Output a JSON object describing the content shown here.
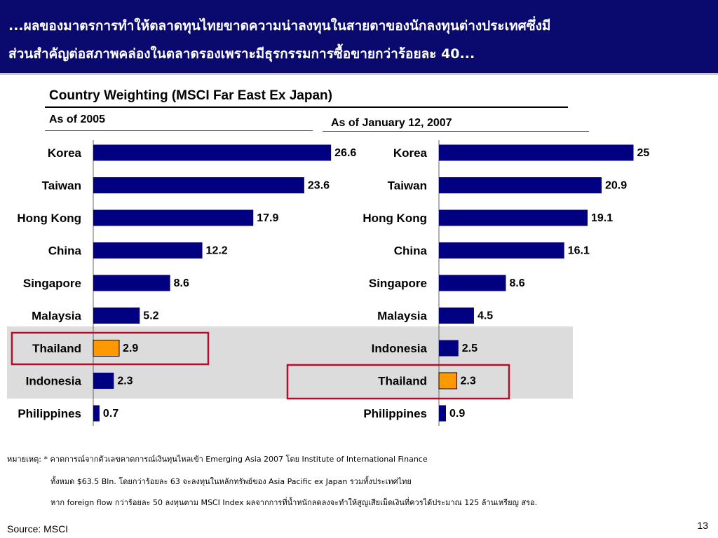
{
  "header": {
    "line1": "...ผลของมาตรการทำให้ตลาดทุนไทยขาดความน่าลงทุนในสายตาของนักลงทุนต่างประเทศซึ่งมี",
    "line2": "ส่วนสำคัญต่อสภาพคล่องในตลาดรองเพราะมีธุรกรรมการซื้อขายกว่าร้อยละ 40..."
  },
  "colors": {
    "bar": "#000080",
    "highlight_bar": "#ff9900",
    "highlight_box": "#b0102a",
    "band": "#dcdcdc"
  },
  "chart_data": [
    {
      "type": "bar",
      "orientation": "horizontal",
      "title": "Country Weighting (MSCI Far East Ex Japan)",
      "subtitle": "As of 2005",
      "categories": [
        "Korea",
        "Taiwan",
        "Hong Kong",
        "China",
        "Singapore",
        "Malaysia",
        "Thailand",
        "Indonesia",
        "Philippines"
      ],
      "values": [
        26.6,
        23.6,
        17.9,
        12.2,
        8.6,
        5.2,
        2.9,
        2.3,
        0.7
      ],
      "labels": [
        "26.6",
        "23.6",
        "17.9",
        "12.2",
        "8.6",
        "5.2",
        "2.9",
        "2.3",
        "0.7"
      ],
      "highlight": "Thailand",
      "xlim": [
        0,
        27
      ]
    },
    {
      "type": "bar",
      "orientation": "horizontal",
      "subtitle": "As of January 12, 2007",
      "categories": [
        "Korea",
        "Taiwan",
        "Hong Kong",
        "China",
        "Singapore",
        "Malaysia",
        "Indonesia",
        "Thailand",
        "Philippines"
      ],
      "values": [
        25,
        20.9,
        19.1,
        16.1,
        8.6,
        4.5,
        2.5,
        2.3,
        0.9
      ],
      "labels": [
        "25",
        "20.9",
        "19.1",
        "16.1",
        "8.6",
        "4.5",
        "2.5",
        "2.3",
        "0.9"
      ],
      "highlight": "Thailand",
      "xlim": [
        0,
        27
      ]
    }
  ],
  "notes": {
    "line1": "หมายเหตุ: * คาดการณ์จากตัวเลขคาดการณ์เงินทุนไหลเข้า Emerging Asia 2007 โดย Institute of International Finance",
    "line2": "ทั้งหมด $63.5 Bln. โดยกว่าร้อยละ 63 จะลงทุนในหลักทรัพย์ของ Asia Pacific ex Japan รวมทั้งประเทศไทย",
    "line3": "หาก foreign flow กว่าร้อยละ 50 ลงทุนตาม MSCI Index ผลจากการที่น้ำหนักลดลงจะทำให้สูญเสียเม็ดเงินที่ควรได้ประมาณ 125 ล้านเหรียญ สรอ."
  },
  "source": "Source: MSCI",
  "page_number": "13"
}
